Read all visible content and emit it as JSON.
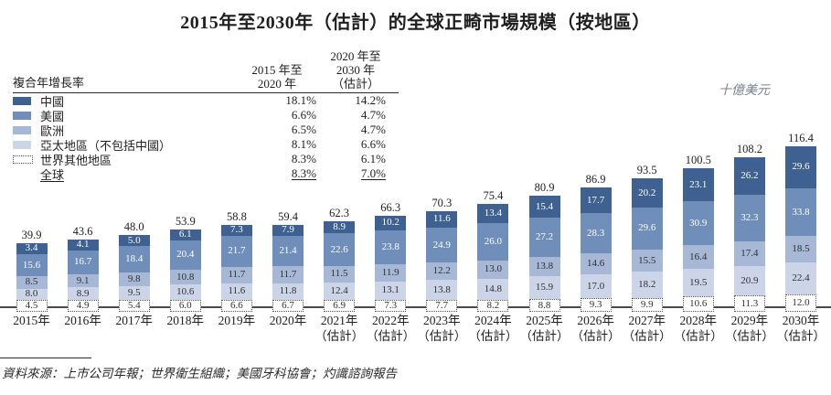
{
  "title": "2015年至2030年（估計）的全球正畸市場規模（按地區）",
  "unit_label": "十億美元",
  "source": "資料來源：上市公司年報；世界衛生組織；美國牙科協會；灼識諮詢報告",
  "colors": {
    "china": "#3e6191",
    "usa": "#6f8eba",
    "europe": "#a6b8d6",
    "apac": "#ccd5e8",
    "row_border": "#58595b",
    "axis": "#4a4a4c"
  },
  "cagr_table": {
    "header_label": "複合年增長率",
    "col1_header_lines": [
      "2015 年至",
      "2020 年"
    ],
    "col2_header_lines": [
      "2020 年至",
      "2030 年",
      "（估計）"
    ],
    "rows": [
      {
        "label": "中國",
        "swatch": "#3e6191",
        "cagr_2015_2020": "18.1%",
        "cagr_2020_2030": "14.2%",
        "underline": false
      },
      {
        "label": "美國",
        "swatch": "#6f8eba",
        "cagr_2015_2020": "6.6%",
        "cagr_2020_2030": "4.7%",
        "underline": false
      },
      {
        "label": "歐洲",
        "swatch": "#a6b8d6",
        "cagr_2015_2020": "6.5%",
        "cagr_2020_2030": "4.7%",
        "underline": false
      },
      {
        "label": "亞太地區（不包括中國）",
        "swatch": "#ccd5e8",
        "cagr_2015_2020": "8.1%",
        "cagr_2020_2030": "6.6%",
        "underline": false
      },
      {
        "label": "世界其他地區",
        "swatch": "dotted",
        "cagr_2015_2020": "8.3%",
        "cagr_2020_2030": "6.1%",
        "underline": false
      },
      {
        "label": "全球",
        "swatch": "none",
        "cagr_2015_2020": "8.3%",
        "cagr_2020_2030": "7.0%",
        "underline": true
      }
    ]
  },
  "chart_data": {
    "type": "bar",
    "stacked": true,
    "title": "2015年至2030年（估計）的全球正畸市場規模（按地區）",
    "ylabel": "十億美元",
    "legend_position": "top-left",
    "grid": false,
    "categories": [
      {
        "year": "2015年",
        "note": ""
      },
      {
        "year": "2016年",
        "note": ""
      },
      {
        "year": "2017年",
        "note": ""
      },
      {
        "year": "2018年",
        "note": ""
      },
      {
        "year": "2019年",
        "note": ""
      },
      {
        "year": "2020年",
        "note": ""
      },
      {
        "year": "2021年",
        "note": "（估計）"
      },
      {
        "year": "2022年",
        "note": "（估計）"
      },
      {
        "year": "2023年",
        "note": "（估計）"
      },
      {
        "year": "2024年",
        "note": "（估計）"
      },
      {
        "year": "2025年",
        "note": "（估計）"
      },
      {
        "year": "2026年",
        "note": "（估計）"
      },
      {
        "year": "2027年",
        "note": "（估計）"
      },
      {
        "year": "2028年",
        "note": "（估計）"
      },
      {
        "year": "2029年",
        "note": "（估計）"
      },
      {
        "year": "2030年",
        "note": "（估計）"
      }
    ],
    "totals": [
      39.9,
      43.6,
      48.0,
      53.9,
      58.8,
      59.4,
      62.3,
      66.3,
      70.3,
      75.4,
      80.9,
      86.9,
      93.5,
      100.5,
      108.2,
      116.4
    ],
    "series": [
      {
        "name": "中國",
        "color": "#3e6191",
        "label_color": "#ffffff",
        "values": [
          3.4,
          4.1,
          5.0,
          6.1,
          7.3,
          7.9,
          8.9,
          10.2,
          11.6,
          13.4,
          15.4,
          17.7,
          20.2,
          23.1,
          26.2,
          29.6
        ]
      },
      {
        "name": "美國",
        "color": "#6f8eba",
        "label_color": "#ffffff",
        "values": [
          15.6,
          16.7,
          18.4,
          20.4,
          21.7,
          21.4,
          22.6,
          23.8,
          24.9,
          26.0,
          27.2,
          28.3,
          29.6,
          30.9,
          32.3,
          33.8
        ]
      },
      {
        "name": "歐洲",
        "color": "#a6b8d6",
        "label_color": "#303030",
        "values": [
          8.5,
          9.1,
          9.8,
          10.8,
          11.7,
          11.7,
          11.5,
          11.9,
          12.2,
          13.0,
          13.8,
          14.6,
          15.5,
          16.4,
          17.4,
          18.5
        ]
      },
      {
        "name": "亞太地區（不包括中國）",
        "color": "#ccd5e8",
        "label_color": "#303030",
        "values": [
          8.0,
          8.9,
          9.5,
          10.6,
          11.6,
          11.8,
          12.4,
          13.1,
          13.8,
          14.8,
          15.9,
          17.0,
          18.2,
          19.5,
          20.9,
          22.4
        ]
      },
      {
        "name": "世界其他地區",
        "color": "dotted-white",
        "label_color": "#303030",
        "values": [
          4.5,
          4.9,
          5.4,
          6.0,
          6.6,
          6.7,
          6.9,
          7.3,
          7.7,
          8.2,
          8.8,
          9.3,
          9.9,
          10.6,
          11.3,
          12.0
        ]
      }
    ]
  }
}
